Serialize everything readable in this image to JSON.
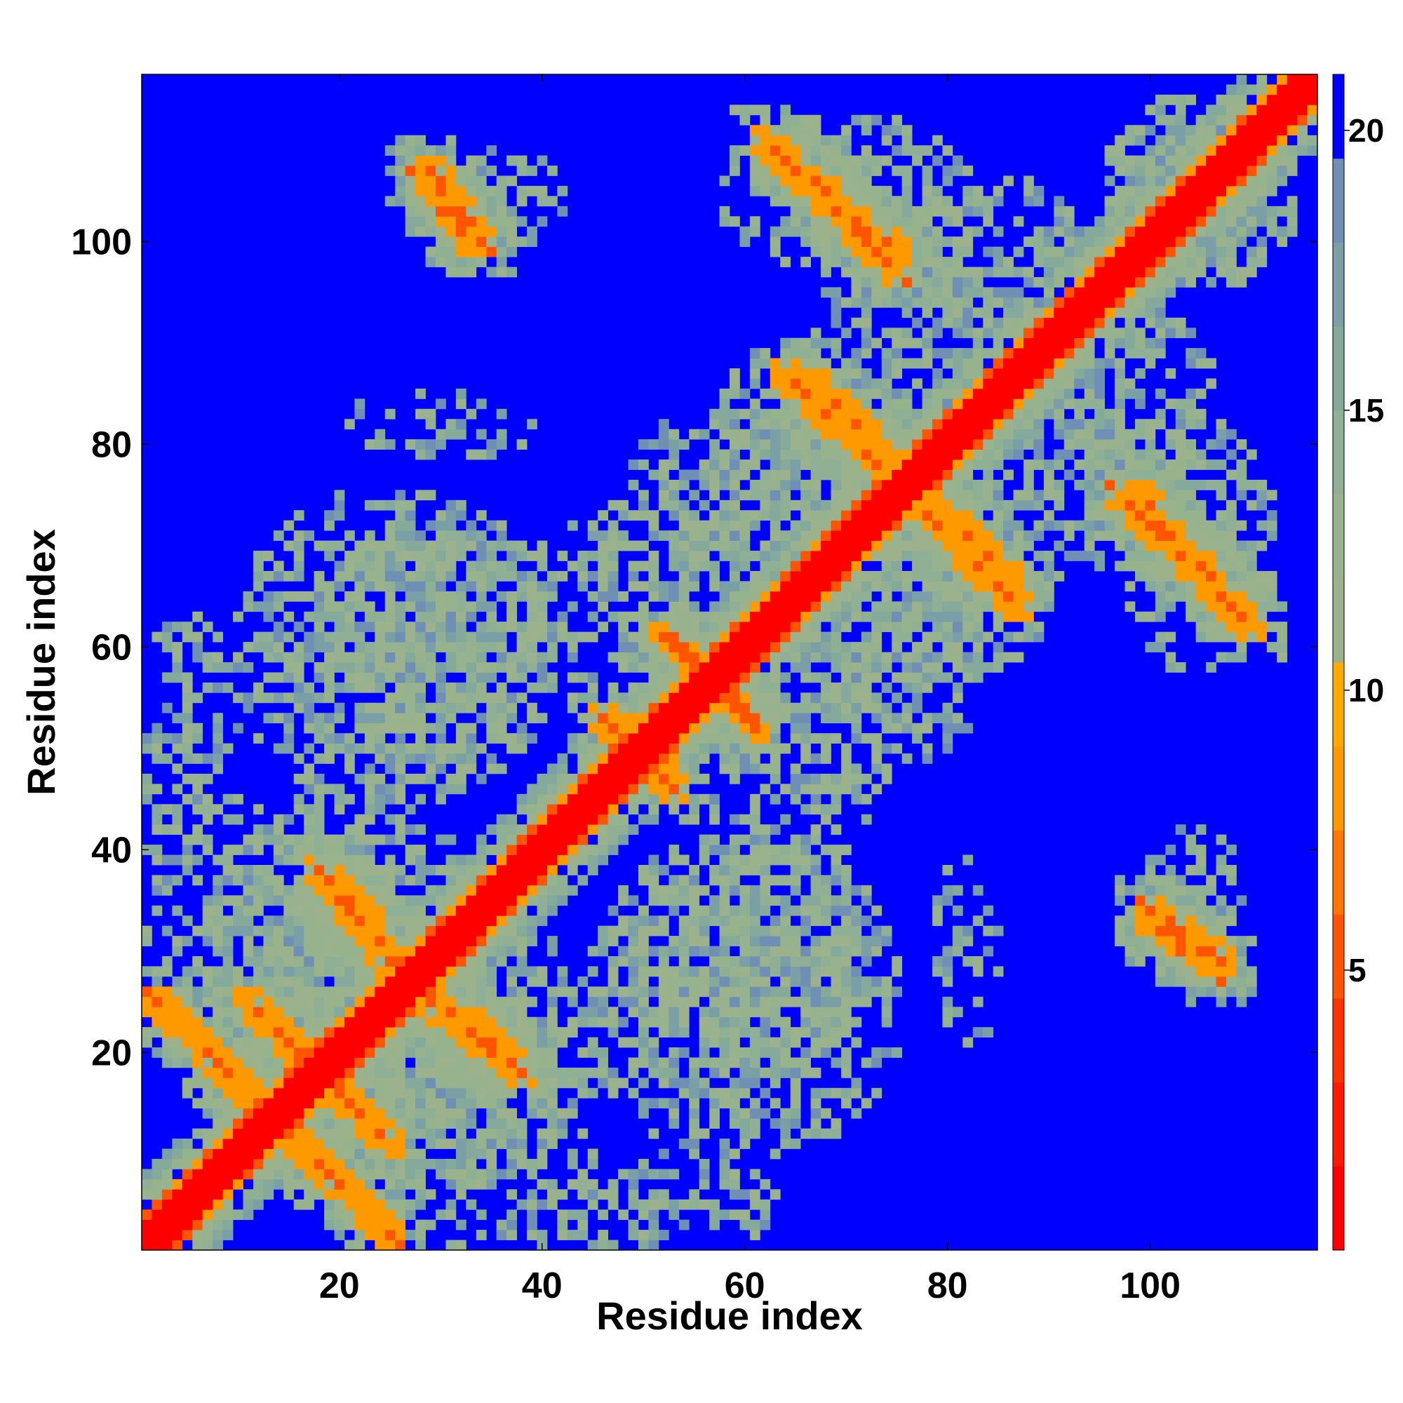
{
  "chart_data": {
    "type": "heatmap",
    "title": "",
    "xlabel": "Residue index",
    "ylabel": "Residue index",
    "n_residues": 116,
    "xlim": [
      0.5,
      116.5
    ],
    "ylim": [
      0.5,
      116.5
    ],
    "x_ticks": [
      20,
      40,
      60,
      80,
      100
    ],
    "y_ticks": [
      20,
      40,
      60,
      80,
      100
    ],
    "colorbar": {
      "ticks": [
        5,
        10,
        15,
        20
      ],
      "range": [
        0,
        21
      ],
      "boundaries": [
        0,
        1.5,
        3,
        4.5,
        6,
        7.5,
        9,
        10.5,
        12,
        13.5,
        15,
        16.5,
        18,
        19.5,
        21
      ],
      "colors": [
        "#ff0000",
        "#ff1a00",
        "#ff3300",
        "#ff5500",
        "#ff7700",
        "#ff9900",
        "#ffaa00",
        "#9cb28c",
        "#97b38e",
        "#8fb095",
        "#85a99b",
        "#7b9fa6",
        "#6f8fb4",
        "#0000ff"
      ]
    },
    "distance_unit_note": "",
    "band_definitions": [
      {
        "type": "diagonal",
        "width": 1.8,
        "peak": 1.5
      },
      {
        "type": "diagonal",
        "width": 3.5,
        "peak": 8.5
      }
    ],
    "contact_patches": [
      {
        "i_start": 11,
        "i_end": 22,
        "j_start": 25,
        "j_end": 14,
        "value": 7.5
      },
      {
        "i_start": 15,
        "i_end": 25,
        "j_start": 12,
        "j_end": 2,
        "value": 7.5
      },
      {
        "i_start": 19,
        "i_end": 27,
        "j_start": 37,
        "j_end": 28,
        "value": 7.5
      },
      {
        "i_start": 28,
        "i_end": 38,
        "j_start": 26,
        "j_end": 18,
        "value": 7.5
      },
      {
        "i_start": 29,
        "i_end": 34,
        "j_start": 107,
        "j_end": 100,
        "value": 7.5
      },
      {
        "i_start": 62,
        "i_end": 75,
        "j_start": 110,
        "j_end": 97,
        "value": 7.5
      },
      {
        "i_start": 64,
        "i_end": 74,
        "j_start": 87,
        "j_end": 77,
        "value": 7.5
      },
      {
        "i_start": 78,
        "i_end": 87,
        "j_start": 75,
        "j_end": 66,
        "value": 7.5
      },
      {
        "i_start": 99,
        "i_end": 108,
        "j_start": 75,
        "j_end": 64,
        "value": 7.5
      },
      {
        "i_start": 100,
        "i_end": 106,
        "j_start": 33,
        "j_end": 28,
        "value": 7.5
      },
      {
        "i_start": 48,
        "i_end": 53,
        "j_start": 52,
        "j_end": 46,
        "value": 7.5
      },
      {
        "i_start": 54,
        "i_end": 61,
        "j_start": 60,
        "j_end": 52,
        "value": 7.5
      }
    ],
    "background_value": 21,
    "cloud_regions": [
      {
        "cx": 30,
        "cy": 20,
        "rx": 18,
        "ry": 14,
        "density": 0.8
      },
      {
        "cx": 15,
        "cy": 25,
        "rx": 10,
        "ry": 12,
        "density": 0.8
      },
      {
        "cx": 25,
        "cy": 60,
        "rx": 16,
        "ry": 16,
        "density": 0.7
      },
      {
        "cx": 50,
        "cy": 65,
        "rx": 12,
        "ry": 10,
        "density": 0.6
      },
      {
        "cx": 70,
        "cy": 80,
        "rx": 14,
        "ry": 12,
        "density": 0.7
      },
      {
        "cx": 85,
        "cy": 95,
        "rx": 10,
        "ry": 12,
        "density": 0.6
      },
      {
        "cx": 60,
        "cy": 30,
        "rx": 14,
        "ry": 12,
        "density": 0.7
      },
      {
        "cx": 75,
        "cy": 60,
        "rx": 10,
        "ry": 12,
        "density": 0.6
      },
      {
        "cx": 100,
        "cy": 75,
        "rx": 12,
        "ry": 10,
        "density": 0.6
      },
      {
        "cx": 30,
        "cy": 82,
        "rx": 10,
        "ry": 4,
        "density": 0.4
      },
      {
        "cx": 70,
        "cy": 105,
        "rx": 14,
        "ry": 8,
        "density": 0.5
      },
      {
        "cx": 35,
        "cy": 104,
        "rx": 8,
        "ry": 6,
        "density": 0.5
      },
      {
        "cx": 105,
        "cy": 105,
        "rx": 10,
        "ry": 10,
        "density": 0.7
      },
      {
        "cx": 45,
        "cy": 5,
        "rx": 20,
        "ry": 6,
        "density": 0.5
      }
    ]
  }
}
